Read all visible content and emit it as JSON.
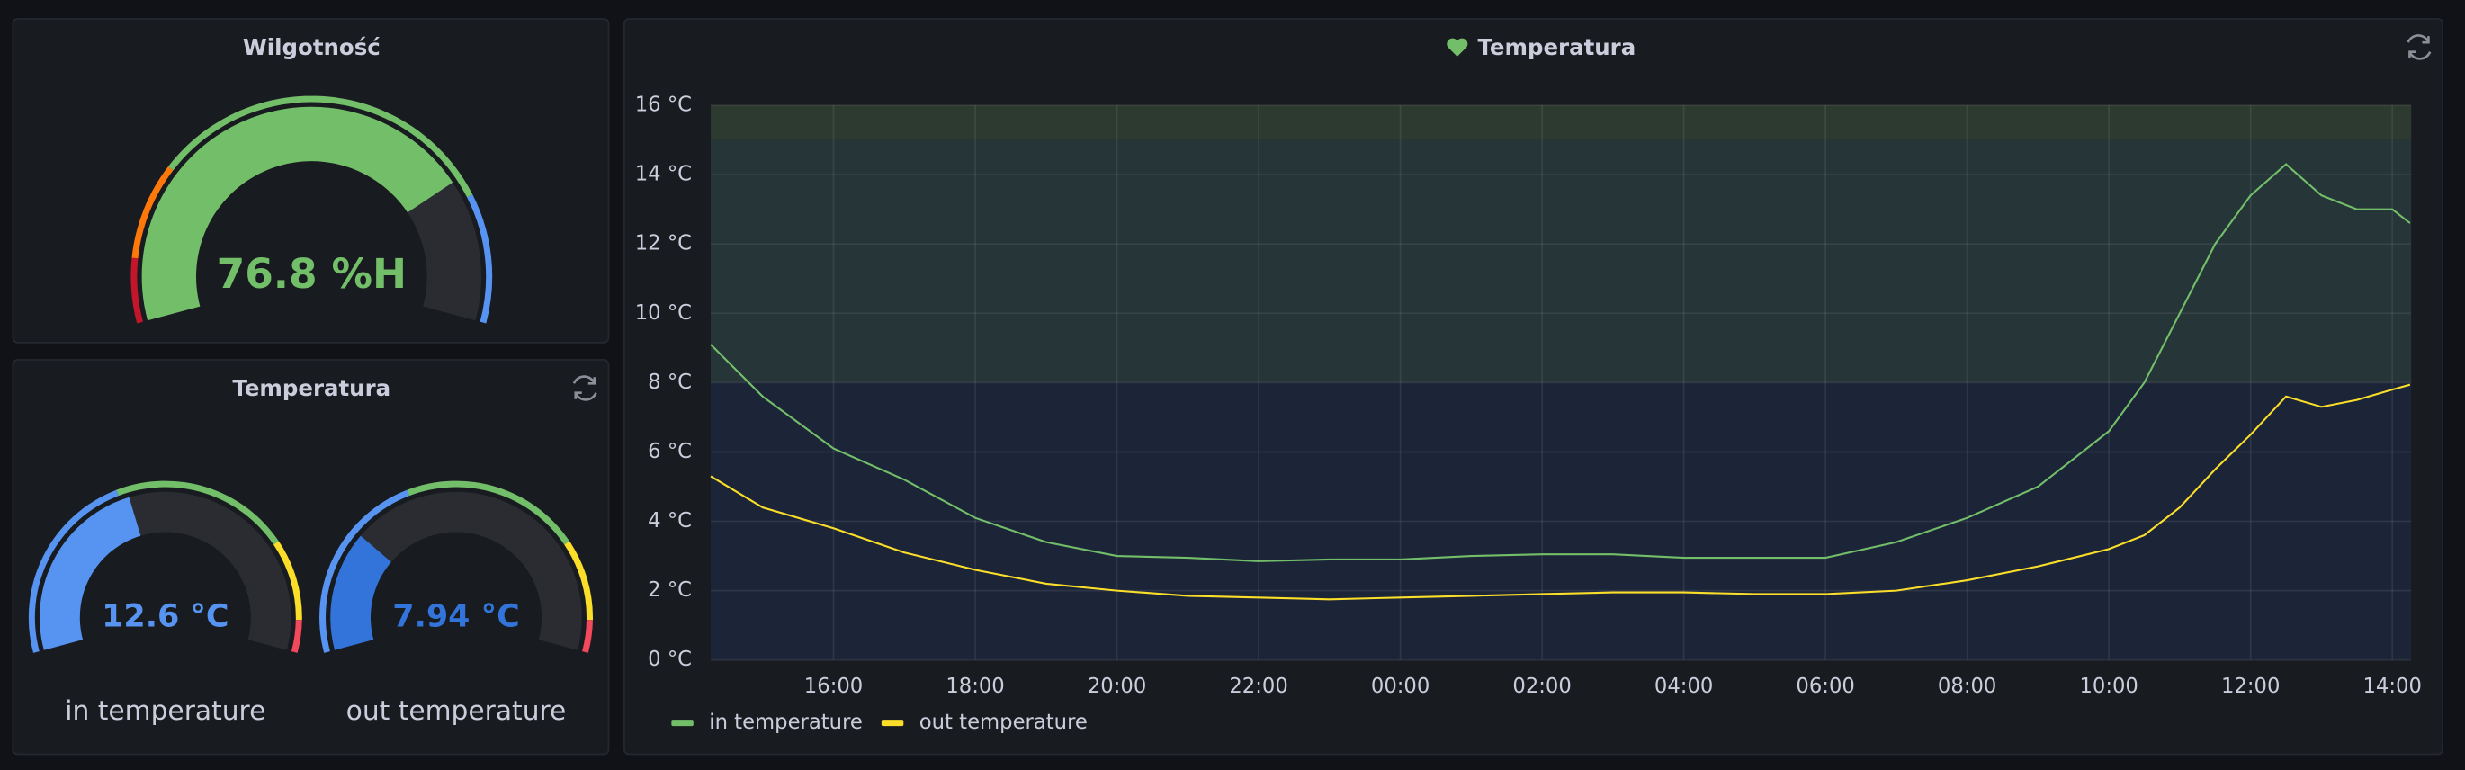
{
  "panels": {
    "humidity": {
      "title": "Wilgotność",
      "value": 76.8,
      "value_label": "76.8 %H",
      "min": 0,
      "max": 100,
      "color": "#73bf69",
      "thresholds": [
        {
          "from": 0,
          "to": 10,
          "color": "#c4162a"
        },
        {
          "from": 10,
          "to": 25,
          "color": "#ff780a"
        },
        {
          "from": 25,
          "to": 80,
          "color": "#73bf69"
        },
        {
          "from": 80,
          "to": 100,
          "color": "#5794f2"
        }
      ]
    },
    "temperature_gauges": {
      "title": "Temperatura",
      "min": 0,
      "max": 30,
      "thresholds": [
        {
          "from": 0,
          "to": 12,
          "color": "#5794f2"
        },
        {
          "from": 12,
          "to": 23,
          "color": "#73bf69"
        },
        {
          "from": 23,
          "to": 28,
          "color": "#fade2a"
        },
        {
          "from": 28,
          "to": 30,
          "color": "#f2495c"
        }
      ],
      "gauges": [
        {
          "name": "in temperature",
          "value": 12.6,
          "value_label": "12.6 °C",
          "color": "#5794f2"
        },
        {
          "name": "out temperature",
          "value": 7.94,
          "value_label": "7.94 °C",
          "color": "#3274d9"
        }
      ]
    }
  },
  "chart_data": {
    "type": "line",
    "title": "Temperatura",
    "x": [
      "14:16",
      "15:00",
      "16:00",
      "17:00",
      "18:00",
      "19:00",
      "20:00",
      "21:00",
      "22:00",
      "23:00",
      "00:00",
      "01:00",
      "02:00",
      "03:00",
      "04:00",
      "05:00",
      "06:00",
      "07:00",
      "08:00",
      "09:00",
      "10:00",
      "10:30",
      "11:00",
      "11:30",
      "12:00",
      "12:30",
      "13:00",
      "13:30",
      "14:00",
      "14:15"
    ],
    "xlim": [
      "14:16",
      "14:16"
    ],
    "xticks": [
      "16:00",
      "18:00",
      "20:00",
      "22:00",
      "00:00",
      "02:00",
      "04:00",
      "06:00",
      "08:00",
      "10:00",
      "12:00",
      "14:00"
    ],
    "ylim": [
      0,
      16
    ],
    "yticks": [
      {
        "value": 0,
        "label": "0 °C"
      },
      {
        "value": 2,
        "label": "2 °C"
      },
      {
        "value": 4,
        "label": "4 °C"
      },
      {
        "value": 6,
        "label": "6 °C"
      },
      {
        "value": 8,
        "label": "8 °C"
      },
      {
        "value": 10,
        "label": "10 °C"
      },
      {
        "value": 12,
        "label": "12 °C"
      },
      {
        "value": 14,
        "label": "14 °C"
      },
      {
        "value": 16,
        "label": "16 °C"
      }
    ],
    "grid": true,
    "bands": [
      {
        "from": 0,
        "to": 8,
        "color": "#1c2438"
      },
      {
        "from": 8,
        "to": 15,
        "color": "#253538"
      },
      {
        "from": 15,
        "to": 16,
        "color": "#2c3a30"
      }
    ],
    "series": [
      {
        "name": "in temperature",
        "color": "#73bf69",
        "values": [
          9.1,
          7.6,
          6.1,
          5.2,
          4.1,
          3.4,
          3.0,
          2.95,
          2.85,
          2.9,
          2.9,
          3.0,
          3.05,
          3.05,
          2.95,
          2.95,
          2.95,
          3.4,
          4.1,
          5.0,
          6.6,
          8.0,
          10.0,
          12.0,
          13.4,
          14.3,
          13.4,
          13.0,
          13.0,
          12.6
        ]
      },
      {
        "name": "out temperature",
        "color": "#fade2a",
        "values": [
          5.3,
          4.4,
          3.8,
          3.1,
          2.6,
          2.2,
          2.0,
          1.85,
          1.8,
          1.75,
          1.8,
          1.85,
          1.9,
          1.95,
          1.95,
          1.9,
          1.9,
          2.0,
          2.3,
          2.7,
          3.2,
          3.6,
          4.4,
          5.5,
          6.5,
          7.6,
          7.3,
          7.5,
          7.8,
          7.94
        ]
      }
    ]
  }
}
